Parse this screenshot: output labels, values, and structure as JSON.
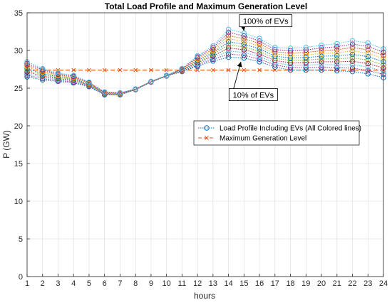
{
  "chart_data": {
    "type": "line",
    "title": "Total Load Profile and Maximum Generation Level",
    "xlabel": "hours",
    "ylabel": "P (GW)",
    "xlim": [
      1,
      24
    ],
    "ylim": [
      0,
      35
    ],
    "xticks": [
      "1",
      "2",
      "3",
      "4",
      "5",
      "6",
      "7",
      "8",
      "9",
      "10",
      "11",
      "12",
      "13",
      "14",
      "15",
      "16",
      "17",
      "18",
      "19",
      "20",
      "21",
      "22",
      "23",
      "24"
    ],
    "yticks": [
      "0",
      "5",
      "10",
      "15",
      "20",
      "25",
      "30",
      "35"
    ],
    "grid": true,
    "legend_position": "center-right",
    "legend": [
      {
        "label": "Load Profile Including EVs (All Colored lines)",
        "color": "#0072BD",
        "marker": "circle",
        "style": "dotted"
      },
      {
        "label": "Maximum Generation Level",
        "color": "#D95319",
        "marker": "x",
        "style": "dashed"
      }
    ],
    "annotations": [
      {
        "text": "100% of EVs",
        "x": 16.4,
        "y": 33.9,
        "arrow_to": [
          15.0,
          32.6
        ]
      },
      {
        "text": "10% of EVs",
        "x": 15.6,
        "y": 24.1,
        "arrow_to": [
          14.8,
          28.5
        ]
      }
    ],
    "x": [
      1,
      2,
      3,
      4,
      5,
      6,
      7,
      8,
      9,
      10,
      11,
      12,
      13,
      14,
      15,
      16,
      17,
      18,
      19,
      20,
      21,
      22,
      23,
      24
    ],
    "ev_min": [
      26.5,
      26.1,
      25.9,
      25.7,
      25.2,
      24.1,
      24.1,
      24.8,
      25.8,
      26.6,
      27.2,
      27.9,
      28.6,
      29.1,
      29.0,
      28.5,
      27.8,
      27.4,
      27.4,
      27.4,
      27.3,
      27.2,
      26.9,
      26.4
    ],
    "ev_max": [
      28.5,
      27.6,
      27.0,
      26.7,
      25.8,
      24.5,
      24.4,
      24.9,
      25.9,
      26.7,
      27.6,
      29.3,
      30.6,
      32.8,
      32.3,
      31.6,
      30.4,
      30.3,
      30.4,
      30.7,
      30.9,
      31.3,
      31.0,
      30.2
    ],
    "ev_series_colors": [
      "#0072BD",
      "#7E2F8E",
      "#4DBEEE",
      "#A2142F",
      "#77AC30",
      "#0072BD",
      "#EDB120",
      "#D95319",
      "#7E2F8E",
      "#4DBEEE"
    ],
    "generation_level": {
      "name": "Maximum Generation Level",
      "value": 27.4,
      "color": "#D95319"
    }
  }
}
